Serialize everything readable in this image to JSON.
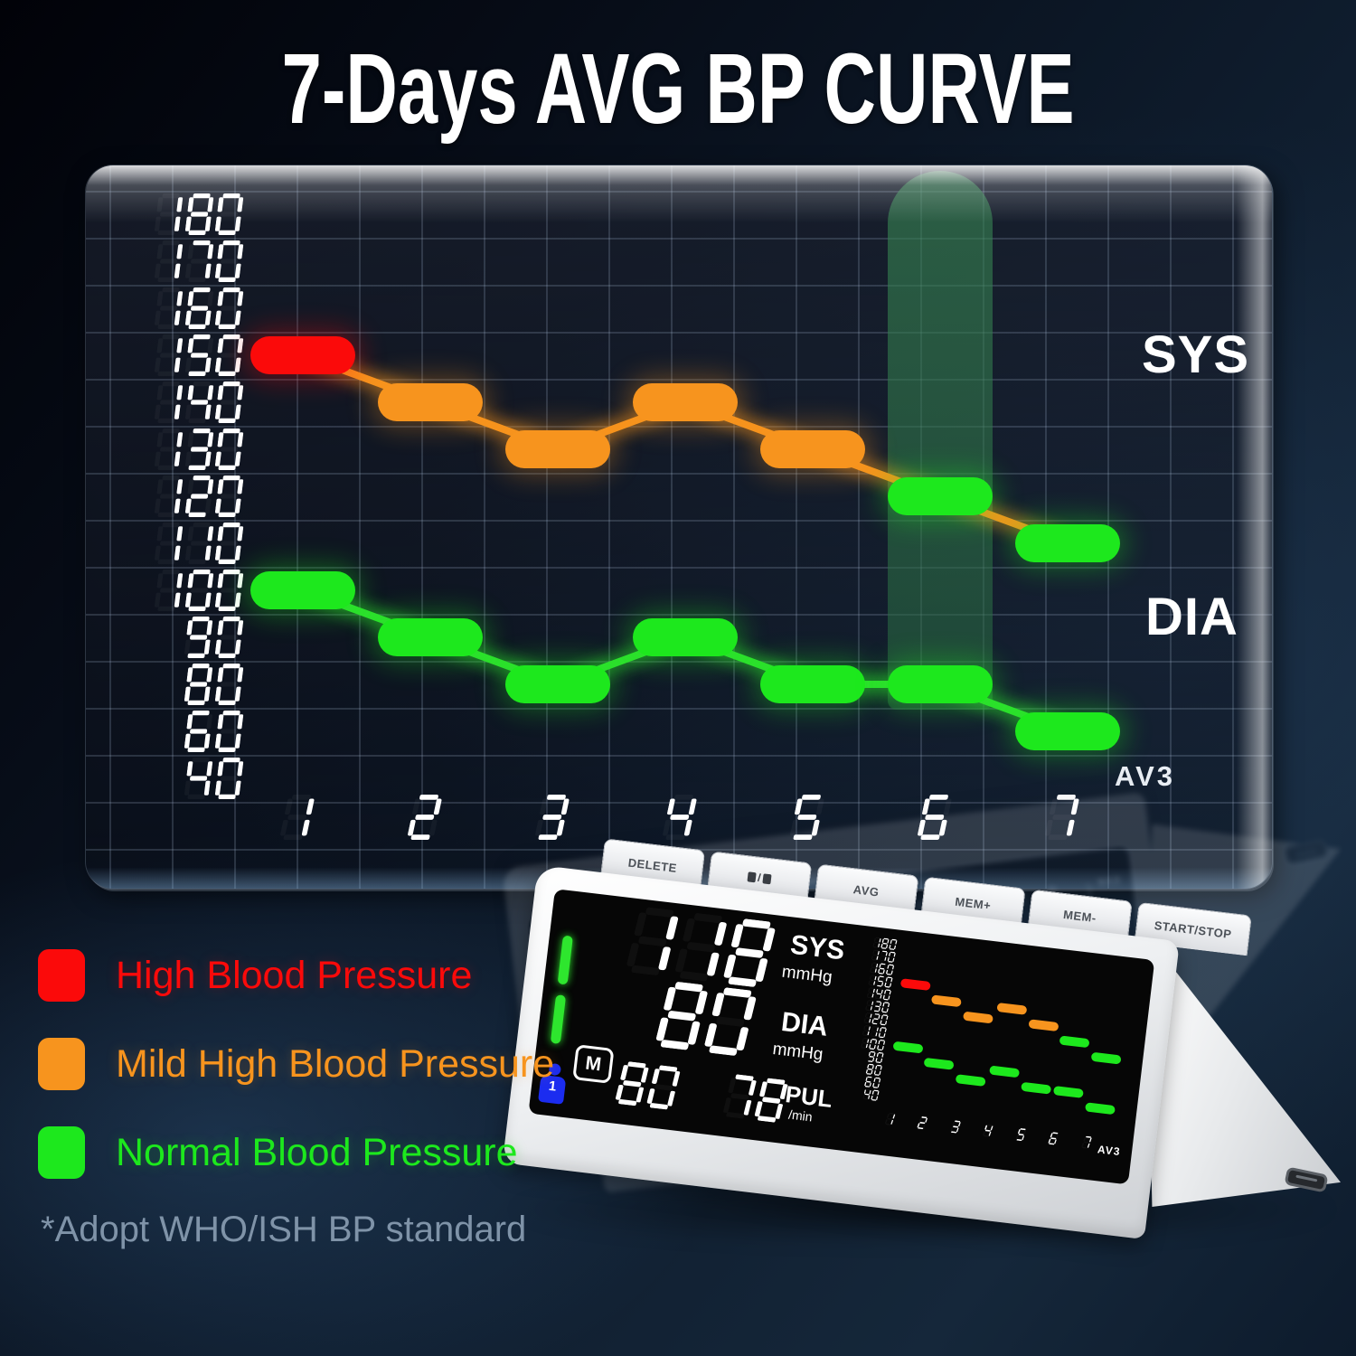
{
  "title": "7-Days AVG BP CURVE",
  "footnote": "*Adopt WHO/ISH BP standard",
  "chart_data": {
    "type": "line",
    "title": "7-Days AVG BP CURVE",
    "categories": [
      "1",
      "2",
      "3",
      "4",
      "5",
      "6",
      "7"
    ],
    "y_ticks": [
      180,
      170,
      160,
      150,
      140,
      130,
      120,
      110,
      100,
      90,
      80,
      60,
      40
    ],
    "series": [
      {
        "name": "SYS",
        "values": [
          150,
          140,
          130,
          140,
          130,
          120,
          110
        ],
        "statuses": [
          "high",
          "mild",
          "mild",
          "mild",
          "mild",
          "normal",
          "normal"
        ],
        "line_color": "#f7941e"
      },
      {
        "name": "DIA",
        "values": [
          100,
          90,
          80,
          90,
          80,
          80,
          60
        ],
        "statuses": [
          "normal",
          "normal",
          "normal",
          "normal",
          "normal",
          "normal",
          "normal"
        ],
        "line_color": "#2ee02e"
      }
    ],
    "status_colors": {
      "high": "#fb0a0a",
      "mild": "#f7941e",
      "normal": "#1de81d"
    },
    "highlighted_category": "6",
    "annotation": "AV3",
    "grid": true,
    "legend_position": "bottom-left"
  },
  "legend": {
    "items": [
      {
        "label": "High Blood Pressure",
        "status": "high",
        "color": "#fb0a0a"
      },
      {
        "label": "Mild High Blood Pressure",
        "status": "mild",
        "color": "#f7941e"
      },
      {
        "label": "Normal Blood Pressure",
        "status": "normal",
        "color": "#1de81d"
      }
    ]
  },
  "device": {
    "buttons": [
      {
        "label": "DELETE",
        "slug": "delete"
      },
      {
        "label": "",
        "icon": "user-switch-icon",
        "slug": "user-switch"
      },
      {
        "label": "AVG",
        "slug": "avg"
      },
      {
        "label": "MEM+",
        "slug": "mem-plus"
      },
      {
        "label": "MEM-",
        "slug": "mem-minus"
      },
      {
        "label": "START/STOP",
        "slug": "start-stop"
      }
    ],
    "display": {
      "sys_value": "118",
      "sys_label": "SYS",
      "sys_unit": "mmHg",
      "dia_value": "80",
      "dia_label": "DIA",
      "dia_unit": "mmHg",
      "memory_value": "80",
      "pulse_value": "78",
      "pulse_label": "PUL",
      "pulse_unit": "/min",
      "memory_icon": "M",
      "user_number": "1",
      "mode_label": "AV3"
    }
  },
  "colors": {
    "background_top": "#05070d",
    "background_bottom": "#15273a",
    "panel_grid": "#a8bcd6",
    "title": "#ffffff",
    "digits": "#ffffff",
    "highlight_column": "#2d7a4a",
    "device_body": "#eef0f2",
    "screen": "#060606",
    "indicator_green": "#2ee62e",
    "user_icon_blue": "#1b2cf0",
    "footnote": "#7f93a8"
  }
}
